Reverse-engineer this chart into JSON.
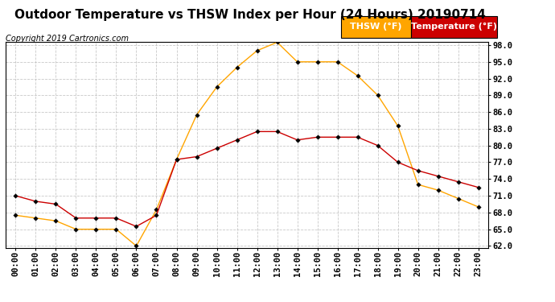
{
  "title": "Outdoor Temperature vs THSW Index per Hour (24 Hours) 20190714",
  "copyright": "Copyright 2019 Cartronics.com",
  "hours": [
    "00:00",
    "01:00",
    "02:00",
    "03:00",
    "04:00",
    "05:00",
    "06:00",
    "07:00",
    "08:00",
    "09:00",
    "10:00",
    "11:00",
    "12:00",
    "13:00",
    "14:00",
    "15:00",
    "16:00",
    "17:00",
    "18:00",
    "19:00",
    "20:00",
    "21:00",
    "22:00",
    "23:00"
  ],
  "thsw": [
    67.5,
    67.0,
    66.5,
    65.0,
    65.0,
    65.0,
    62.0,
    68.5,
    77.5,
    85.5,
    90.5,
    94.0,
    97.0,
    98.5,
    95.0,
    95.0,
    95.0,
    92.5,
    89.0,
    83.5,
    73.0,
    72.0,
    70.5,
    69.0
  ],
  "temperature": [
    71.0,
    70.0,
    69.5,
    67.0,
    67.0,
    67.0,
    65.5,
    67.5,
    77.5,
    78.0,
    79.5,
    81.0,
    82.5,
    82.5,
    81.0,
    81.5,
    81.5,
    81.5,
    80.0,
    77.0,
    75.5,
    74.5,
    73.5,
    72.5
  ],
  "thsw_color": "#FFA500",
  "temp_color": "#CC0000",
  "bg_color": "#ffffff",
  "plot_bg_color": "#ffffff",
  "grid_color": "#bbbbbb",
  "ylim_min": 62.0,
  "ylim_max": 98.0,
  "yticks": [
    62.0,
    65.0,
    68.0,
    71.0,
    74.0,
    77.0,
    80.0,
    83.0,
    86.0,
    89.0,
    92.0,
    95.0,
    98.0
  ],
  "legend_thsw_bg": "#FFA500",
  "legend_temp_bg": "#CC0000",
  "legend_text_color": "#ffffff",
  "title_fontsize": 11,
  "copyright_fontsize": 7,
  "axis_label_fontsize": 7.5,
  "legend_fontsize": 8
}
